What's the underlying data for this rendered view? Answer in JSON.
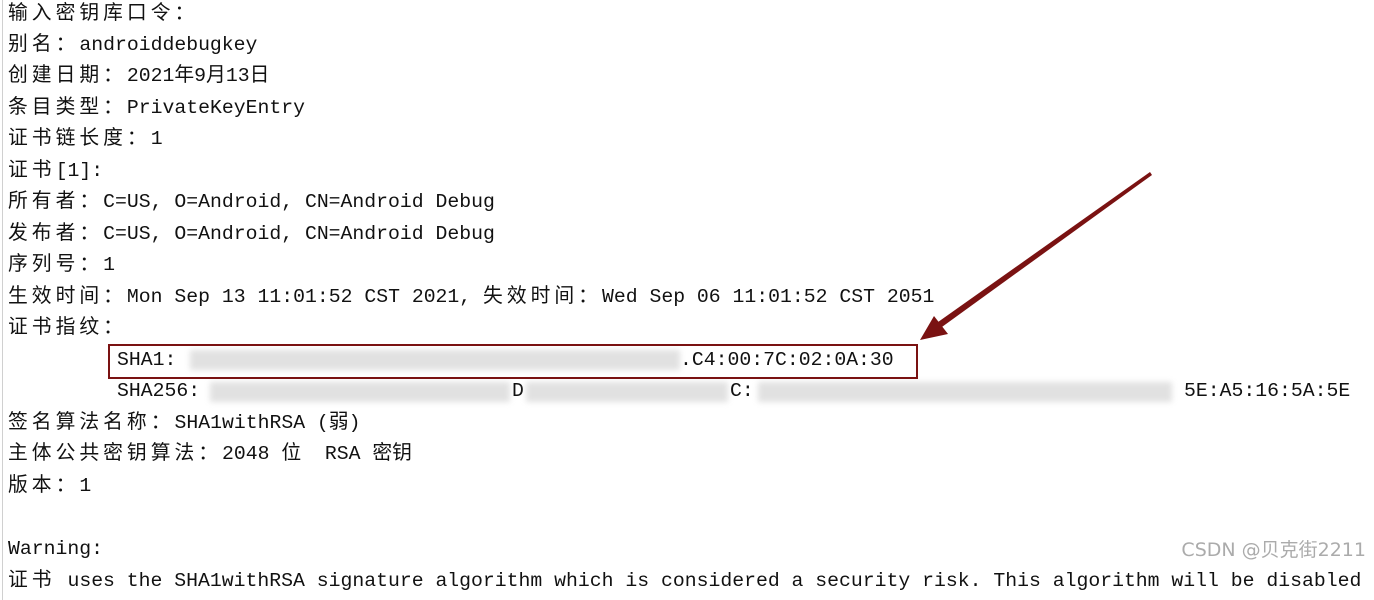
{
  "lines": [
    {
      "label": "输入密钥库口令：",
      "value": ""
    },
    {
      "label": "别名：",
      "value": "androiddebugkey"
    },
    {
      "label": "创建日期：",
      "value": "2021年9月13日"
    },
    {
      "label": "条目类型：",
      "value": "PrivateKeyEntry"
    },
    {
      "label": "证书链长度：",
      "value": "1"
    },
    {
      "label": "证书",
      "value": "[1]:"
    },
    {
      "label": "所有者：",
      "value": "C=US, O=Android, CN=Android Debug"
    },
    {
      "label": "发布者：",
      "value": "C=US, O=Android, CN=Android Debug"
    },
    {
      "label": "序列号：",
      "value": "1"
    },
    {
      "label": "生效时间：",
      "value": "Mon Sep 13 11:01:52 CST 2021, ",
      "label2": "失效时间：",
      "value2": "Wed Sep 06 11:01:52 CST 2051"
    },
    {
      "label": "证书指纹：",
      "value": ""
    }
  ],
  "fingerprints": {
    "sha1_label": "SHA1:",
    "sha1_visible_tail": ".C4:00:7C:02:0A:30",
    "sha256_label": "SHA256:",
    "sha256_fragment_1": "D",
    "sha256_fragment_2": "C:",
    "sha256_visible_tail": "5E:A5:16:5A:5E"
  },
  "lines_after": [
    {
      "label": "签名算法名称：",
      "value": "SHA1withRSA (弱)"
    },
    {
      "label": "主体公共密钥算法：",
      "value": "2048 位  RSA 密钥"
    },
    {
      "label": "版本：",
      "value": "1"
    }
  ],
  "warning": {
    "title": "Warning:",
    "label": "证书",
    "text": " uses the SHA1withRSA signature algorithm which is considered a security risk. This algorithm will be disabled"
  },
  "watermark": "CSDN @贝克街2211",
  "colors": {
    "highlight": "#7a1212",
    "text": "#111111"
  }
}
